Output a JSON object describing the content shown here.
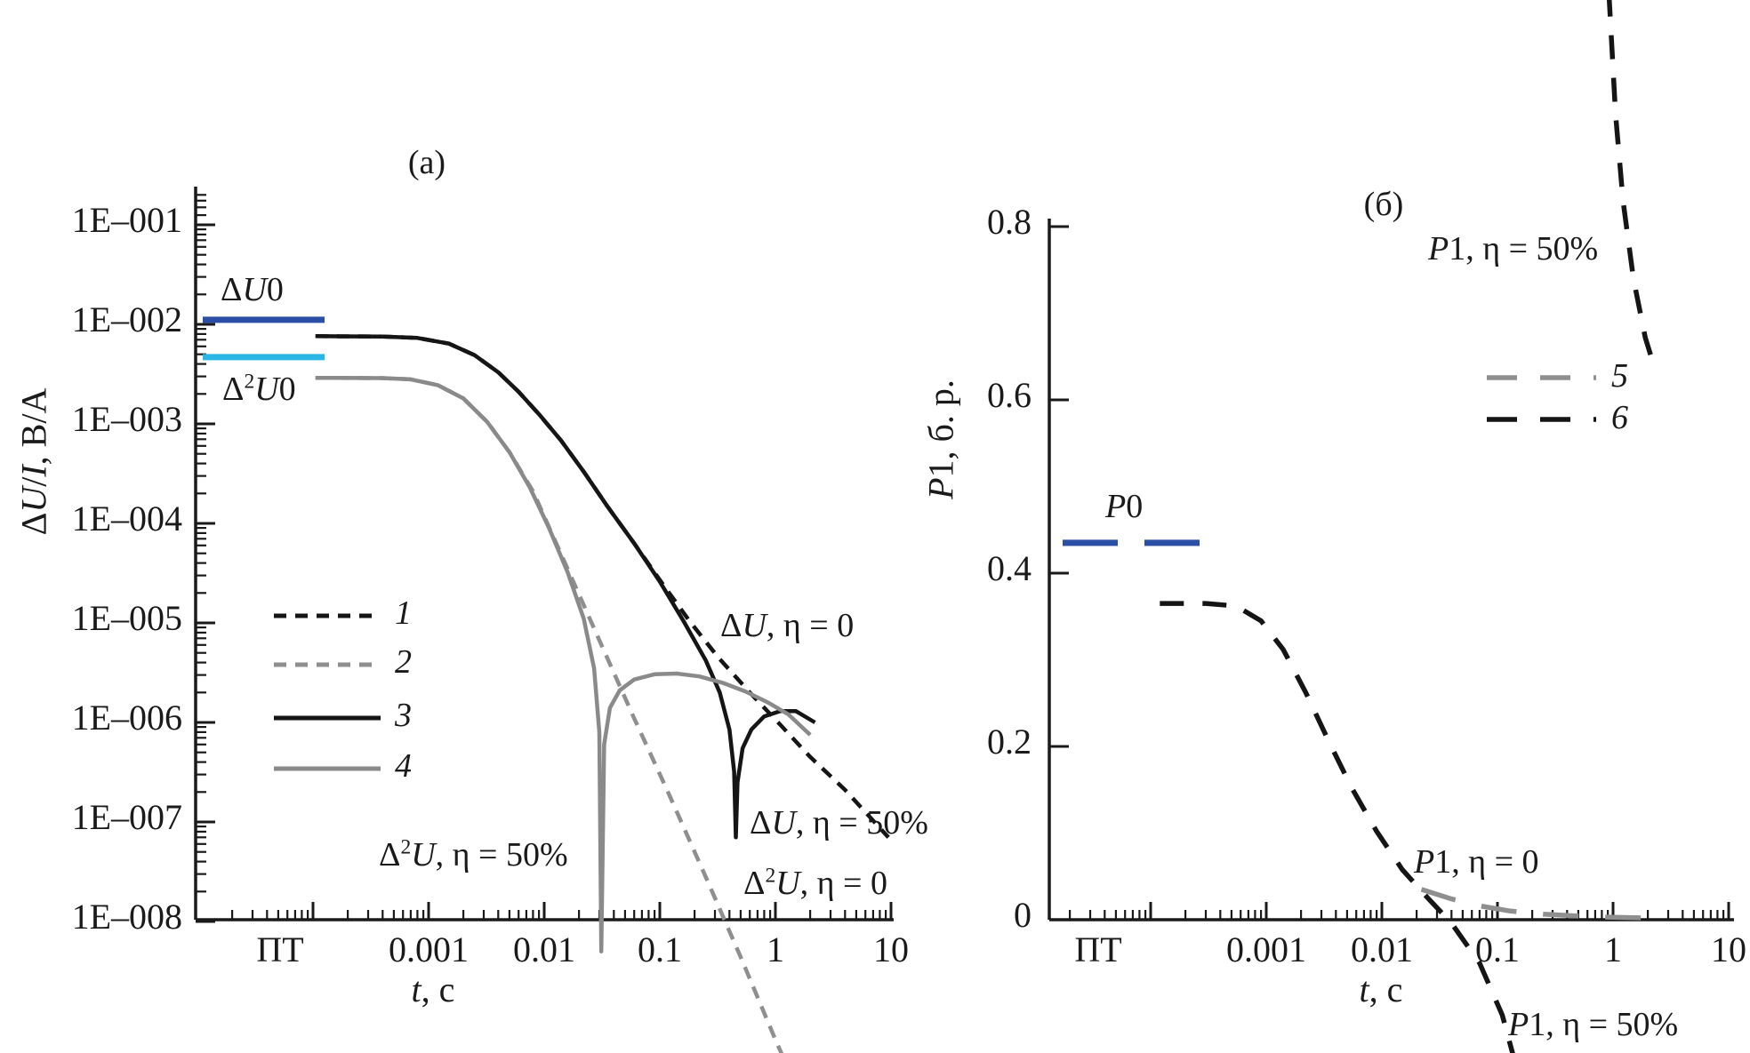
{
  "figure": {
    "description": "Two-panel log-time decay figure: transient responses dU/I and secondary differences (panel a) and induced-polarization parameter P1 (panel b) versus time, for loss factors eta = 0 and eta = 50%",
    "colors": {
      "black": "#151515",
      "gray_solid": "#8a8a8a",
      "gray_dashed": "#8f8f8f",
      "dark_blue": "#2b4fa4",
      "cyan": "#2bb7e5"
    }
  },
  "panels": [
    {
      "id": "a",
      "title": "(а)",
      "ylabel_html": "Δ<i>U</i>/<i>I</i>, В/А",
      "xlabel_html": "<i>t</i>, с",
      "yticks": [
        "1E–001",
        "1E–002",
        "1E–003",
        "1E–004",
        "1E–005",
        "1E–006",
        "1E–007",
        "1E–008"
      ],
      "xticks": [
        "ПТ",
        "0.001",
        "0.01",
        "0.1",
        "1",
        "10"
      ],
      "legend": [
        {
          "label": "1",
          "series": "1"
        },
        {
          "label": "2",
          "series": "2"
        },
        {
          "label": "3",
          "series": "3"
        },
        {
          "label": "4",
          "series": "4"
        }
      ],
      "annotations": {
        "du0": "Δ<i>U</i>0",
        "d2u0": "Δ<sup>2</sup><i>U</i>0",
        "du_eta0": "Δ<i>U</i>, η = 0",
        "du_eta50": "Δ<i>U</i>, η = 50%",
        "d2u_eta50": "Δ<sup>2</sup><i>U</i>, η = 50%",
        "d2u_eta0": "Δ<sup>2</sup><i>U</i>, η = 0"
      }
    },
    {
      "id": "b",
      "title": "(б)",
      "ylabel_html": "<i>P</i>1, б. р.",
      "xlabel_html": "<i>t</i>, с",
      "yticks": [
        "0.8",
        "0.6",
        "0.4",
        "0.2",
        "0"
      ],
      "xticks": [
        "ПТ",
        "0.001",
        "0.01",
        "0.1",
        "1",
        "10"
      ],
      "legend": [
        {
          "label": "5",
          "series": "5"
        },
        {
          "label": "6",
          "series": "6"
        }
      ],
      "annotations": {
        "p1_eta50_top": "<i>P</i>1, η = 50%",
        "p0": "<i>P</i>0",
        "p1_eta0": "<i>P</i>1, η = 0",
        "p1_eta50_bottom": "<i>P</i>1, η = 50%"
      }
    }
  ],
  "chart_data": [
    {
      "panel": "a",
      "type": "line",
      "title": "(а)",
      "xlabel": "t, с",
      "ylabel": "ΔU/I, В/А",
      "xscale": "log",
      "yscale": "log",
      "x_dc_zone_label": "ПТ",
      "xlim": [
        0.0001,
        10
      ],
      "ylim": [
        1e-08,
        0.1
      ],
      "grid": false,
      "ref_lines": [
        {
          "name": "ΔU0",
          "value": 0.0111,
          "color": "#2b4fa4",
          "extent": "dc-zone"
        },
        {
          "name": "Δ²U0",
          "value": 0.00468,
          "color": "#2bb7e5",
          "extent": "dc-zone"
        }
      ],
      "series": [
        {
          "name": "1",
          "label": "ΔU, η = 0",
          "color": "#151515",
          "style": "dashed",
          "points": [
            [
              0.000105,
              0.0076
            ],
            [
              0.0004,
              0.00755
            ],
            [
              0.0008,
              0.0073
            ],
            [
              0.0015,
              0.0064
            ],
            [
              0.0025,
              0.0049
            ],
            [
              0.004,
              0.0033
            ],
            [
              0.006,
              0.0021
            ],
            [
              0.009,
              0.00125
            ],
            [
              0.014,
              0.00068
            ],
            [
              0.022,
              0.00033
            ],
            [
              0.035,
              0.00015
            ],
            [
              0.06,
              6.3e-05
            ],
            [
              0.1,
              2.7e-05
            ],
            [
              0.18,
              1.05e-05
            ],
            [
              0.32,
              4.5e-06
            ],
            [
              0.6,
              2e-06
            ],
            [
              1.1,
              9.5e-07
            ],
            [
              2.0,
              4.5e-07
            ],
            [
              4.0,
              2.1e-07
            ],
            [
              9.5,
              7e-08
            ]
          ]
        },
        {
          "name": "2",
          "label": "Δ²U, η = 0",
          "color": "#8f8f8f",
          "style": "dashed",
          "points": [
            [
              0.000105,
              0.0029
            ],
            [
              0.0004,
              0.00288
            ],
            [
              0.0007,
              0.0028
            ],
            [
              0.0012,
              0.00245
            ],
            [
              0.002,
              0.0018
            ],
            [
              0.0032,
              0.00105
            ],
            [
              0.005,
              0.00052
            ],
            [
              0.008,
              0.00021
            ],
            [
              0.015,
              4.1e-05
            ],
            [
              0.03,
              6.7e-06
            ],
            [
              0.06,
              1.1e-06
            ],
            [
              0.12,
              1.9e-07
            ],
            [
              0.25,
              2.8e-08
            ],
            [
              0.5,
              4.4e-09
            ],
            [
              1.0,
              6.5e-10
            ],
            [
              1.7,
              1.6e-10
            ]
          ]
        },
        {
          "name": "3",
          "label": "ΔU, η = 50%",
          "color": "#151515",
          "style": "solid",
          "points": [
            [
              0.000105,
              0.0076
            ],
            [
              0.0004,
              0.00755
            ],
            [
              0.0008,
              0.0073
            ],
            [
              0.0015,
              0.0064
            ],
            [
              0.0025,
              0.0049
            ],
            [
              0.004,
              0.0033
            ],
            [
              0.006,
              0.0021
            ],
            [
              0.009,
              0.00125
            ],
            [
              0.014,
              0.00068
            ],
            [
              0.022,
              0.00033
            ],
            [
              0.035,
              0.00015
            ],
            [
              0.06,
              6.3e-05
            ],
            [
              0.1,
              2.6e-05
            ],
            [
              0.16,
              1.05e-05
            ],
            [
              0.25,
              4.2e-06
            ],
            [
              0.33,
              2e-06
            ],
            [
              0.4,
              8.5e-07
            ],
            [
              0.44,
              3.2e-07
            ],
            [
              0.455,
              7e-08
            ],
            [
              0.47,
              2.5e-07
            ],
            [
              0.52,
              5.5e-07
            ],
            [
              0.62,
              8.5e-07
            ],
            [
              0.8,
              1.15e-06
            ],
            [
              1.1,
              1.3e-06
            ],
            [
              1.5,
              1.3e-06
            ],
            [
              2.2,
              1e-06
            ]
          ]
        },
        {
          "name": "4",
          "label": "Δ²U, η = 50%",
          "color": "#8a8a8a",
          "style": "solid",
          "points": [
            [
              0.000105,
              0.0029
            ],
            [
              0.0004,
              0.00288
            ],
            [
              0.0007,
              0.0028
            ],
            [
              0.0012,
              0.00245
            ],
            [
              0.002,
              0.0018
            ],
            [
              0.0032,
              0.00105
            ],
            [
              0.005,
              0.00052
            ],
            [
              0.0075,
              0.00023
            ],
            [
              0.011,
              9e-05
            ],
            [
              0.016,
              3.2e-05
            ],
            [
              0.022,
              1.1e-05
            ],
            [
              0.027,
              3.5e-06
            ],
            [
              0.03,
              8e-07
            ],
            [
              0.0312,
              5e-09
            ],
            [
              0.033,
              6e-07
            ],
            [
              0.037,
              1.4e-06
            ],
            [
              0.045,
              2.1e-06
            ],
            [
              0.06,
              2.7e-06
            ],
            [
              0.09,
              3.05e-06
            ],
            [
              0.14,
              3.1e-06
            ],
            [
              0.22,
              2.9e-06
            ],
            [
              0.35,
              2.5e-06
            ],
            [
              0.55,
              2.05e-06
            ],
            [
              0.85,
              1.6e-06
            ],
            [
              1.3,
              1.2e-06
            ],
            [
              2.0,
              7.5e-07
            ]
          ]
        }
      ]
    },
    {
      "panel": "b",
      "type": "line",
      "title": "(б)",
      "xlabel": "t, с",
      "ylabel": "P1, б. р.",
      "xscale": "log",
      "yscale": "linear",
      "x_dc_zone_label": "ПТ",
      "xlim": [
        0.0001,
        10
      ],
      "ylim": [
        0,
        0.8
      ],
      "grid": false,
      "ref_lines": [
        {
          "name": "P0",
          "value": 0.435,
          "color": "#2b4fa4",
          "extent": "dc-zone"
        }
      ],
      "series": [
        {
          "name": "5",
          "label": "P1, η = 0",
          "color": "#8f8f8f",
          "style": "dashed",
          "points": [
            [
              0.022,
              0.035
            ],
            [
              0.04,
              0.024
            ],
            [
              0.07,
              0.016
            ],
            [
              0.13,
              0.01
            ],
            [
              0.25,
              0.0065
            ],
            [
              0.5,
              0.0042
            ],
            [
              1.0,
              0.0028
            ],
            [
              2.2,
              0.0018
            ]
          ]
        },
        {
          "name": "6",
          "label": "P1, η = 50%",
          "color": "#151515",
          "style": "dashed",
          "points": [
            [
              0.00012,
              0.365
            ],
            [
              0.0003,
              0.365
            ],
            [
              0.00055,
              0.362
            ],
            [
              0.0009,
              0.345
            ],
            [
              0.0014,
              0.312
            ],
            [
              0.0022,
              0.262
            ],
            [
              0.0035,
              0.205
            ],
            [
              0.0055,
              0.152
            ],
            [
              0.009,
              0.102
            ],
            [
              0.015,
              0.058
            ],
            [
              0.025,
              0.025
            ],
            [
              0.04,
              -0.004
            ],
            [
              0.07,
              -0.05
            ],
            [
              0.11,
              -0.11
            ],
            [
              0.16,
              -0.19
            ]
          ],
          "branch2_points": [
            [
              0.92,
              1.07
            ],
            [
              1.05,
              0.93
            ],
            [
              1.22,
              0.83
            ],
            [
              1.5,
              0.74
            ],
            [
              1.9,
              0.672
            ],
            [
              2.3,
              0.636
            ]
          ]
        }
      ]
    }
  ]
}
